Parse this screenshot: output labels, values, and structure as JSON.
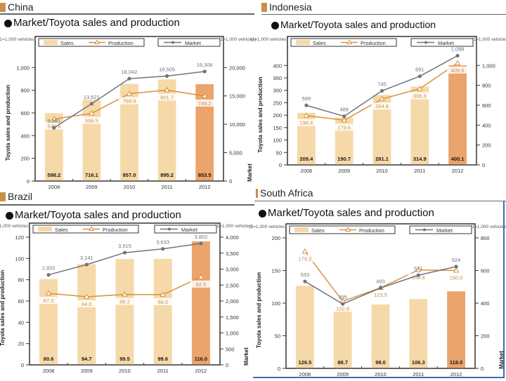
{
  "colors": {
    "sales_light": "#f6d9a8",
    "sales_2012": "#eba46b",
    "production_line": "#d8913c",
    "production_label": "#c98a4a",
    "market_line": "#707480",
    "market_label": "#6d7382",
    "header_square": "#c8904a"
  },
  "chart_data": [
    {
      "id": "china",
      "country": "China",
      "type": "bar",
      "title": "Market/Toyota sales and production",
      "unit_label": "(1=1,000 vehicles)",
      "ylabel": "Toyota sales and production",
      "y2label": "Market",
      "legend": {
        "sales": "Sales",
        "production": "Production",
        "market": "Market"
      },
      "categories": [
        "2008",
        "2009",
        "2010",
        "2011",
        "2012"
      ],
      "ylim": [
        0,
        1150
      ],
      "yticks": [
        0,
        200,
        400,
        600,
        800,
        1000
      ],
      "ytick_labels": [
        "0",
        "200",
        "400",
        "600",
        "800",
        "1,000"
      ],
      "y2lim": [
        0,
        23000
      ],
      "y2ticks": [
        0,
        5000,
        10000,
        15000,
        20000
      ],
      "y2tick_labels": [
        "0",
        "5,000",
        "10,000",
        "15,000",
        "20,000"
      ],
      "series": [
        {
          "name": "Sales",
          "kind": "bar",
          "values": [
            598.2,
            716.1,
            857.0,
            895.2,
            853.5
          ],
          "labels": [
            "598.2",
            "716.1",
            "857.0",
            "895.2",
            "853.5"
          ]
        },
        {
          "name": "Production",
          "kind": "line",
          "values": [
            546.6,
            596.5,
            769.9,
            801.7,
            749.2
          ],
          "labels": [
            "546.6",
            "596.5",
            "769.9",
            "801.7",
            "749.2"
          ]
        },
        {
          "name": "Market",
          "kind": "line",
          "axis": "right",
          "values": [
            9381,
            13621,
            18042,
            18505,
            19306
          ],
          "labels": [
            "9,381",
            "13,621",
            "18,042",
            "18,505",
            "19,306"
          ]
        }
      ]
    },
    {
      "id": "indonesia",
      "country": "Indonesia",
      "type": "bar",
      "title": "Market/Toyota sales and production",
      "unit_label": "(1=1,000 vehicles)",
      "ylabel": "Toyota sales and production",
      "y2label": "",
      "legend": {
        "sales": "Sales",
        "production": "Production",
        "market": "Market"
      },
      "categories": [
        "2008",
        "2009",
        "2010",
        "2011",
        "2012"
      ],
      "ylim": [
        0,
        460
      ],
      "yticks": [
        0,
        50,
        100,
        150,
        200,
        250,
        300,
        350,
        400
      ],
      "ytick_labels": [
        "0",
        "50",
        "100",
        "150",
        "200",
        "250",
        "300",
        "350",
        "400"
      ],
      "y2lim": [
        0,
        1150
      ],
      "y2ticks": [
        0,
        200,
        400,
        600,
        800,
        1000
      ],
      "y2tick_labels": [
        "0",
        "200",
        "400",
        "600",
        "800",
        "1,000"
      ],
      "series": [
        {
          "name": "Sales",
          "kind": "bar",
          "values": [
            209.4,
            190.7,
            281.1,
            314.9,
            400.1
          ],
          "labels": [
            "209.4",
            "190.7",
            "281.1",
            "314.9",
            "400.1"
          ]
        },
        {
          "name": "Production",
          "kind": "line",
          "values": [
            198.4,
            179.6,
            264.8,
            306.3,
            409.6
          ],
          "labels": [
            "198.4",
            "179.6",
            "264.8",
            "306.3",
            "409.6"
          ]
        },
        {
          "name": "Market",
          "kind": "line",
          "axis": "right",
          "values": [
            599,
            489,
            745,
            891,
            1098
          ],
          "labels": [
            "599",
            "489",
            "745",
            "891",
            "1,098"
          ]
        }
      ]
    },
    {
      "id": "brazil",
      "country": "Brazil",
      "type": "bar",
      "title": "Market/Toyota sales and production",
      "unit_label": "(1=1,000 vehicles)",
      "ylabel": "Toyota sales and production",
      "y2label": "Market",
      "legend": {
        "sales": "Sales",
        "production": "Production",
        "market": "Market"
      },
      "categories": [
        "2008",
        "2009",
        "2010",
        "2011",
        "2012"
      ],
      "ylim": [
        0,
        120
      ],
      "yticks": [
        0,
        20,
        40,
        60,
        80,
        100,
        120
      ],
      "ytick_labels": [
        "0",
        "20",
        "40",
        "60",
        "80",
        "100",
        "120"
      ],
      "y2lim": [
        0,
        4000
      ],
      "y2ticks": [
        0,
        500,
        1000,
        1500,
        2000,
        2500,
        3000,
        3500,
        4000
      ],
      "y2tick_labels": [
        "0",
        "500",
        "1,000",
        "1,500",
        "2,000",
        "2,500",
        "3,000",
        "3,500",
        "4,000"
      ],
      "series": [
        {
          "name": "Sales",
          "kind": "bar",
          "values": [
            80.6,
            94.7,
            99.5,
            99.6,
            116.0
          ],
          "labels": [
            "80.6",
            "94.7",
            "99.5",
            "99.6",
            "116.0"
          ]
        },
        {
          "name": "Production",
          "kind": "line",
          "values": [
            67.2,
            64.0,
            66.2,
            66.0,
            82.5
          ],
          "labels": [
            "67.2",
            "64.0",
            "66.2",
            "66.0",
            "82.5"
          ]
        },
        {
          "name": "Market",
          "kind": "line",
          "axis": "right",
          "values": [
            2820,
            3141,
            3515,
            3633,
            3802
          ],
          "labels": [
            "2,820",
            "3,141",
            "3,515",
            "3,633",
            "3,802"
          ]
        }
      ]
    },
    {
      "id": "south-africa",
      "country": "South Africa",
      "type": "bar",
      "title": "Market/Toyota sales and production",
      "unit_label": "(1=1,000 vehicles)",
      "ylabel": "Toyota sales and production",
      "y2label": "Market",
      "legend": {
        "sales": "Sales",
        "production": "Production",
        "market": "Market"
      },
      "categories": [
        "2008",
        "2009",
        "2010",
        "2011",
        "2012"
      ],
      "ylim": [
        0,
        200
      ],
      "yticks": [
        0,
        50,
        100,
        150,
        200
      ],
      "ytick_labels": [
        "0",
        "50",
        "100",
        "150",
        "200"
      ],
      "y2lim": [
        0,
        800
      ],
      "y2ticks": [
        0,
        200,
        400,
        600,
        800
      ],
      "y2tick_labels": [
        "0",
        "200",
        "400",
        "600",
        "800"
      ],
      "series": [
        {
          "name": "Sales",
          "kind": "bar",
          "values": [
            126.5,
            88.7,
            98.0,
            106.3,
            118.0
          ],
          "labels": [
            "126.5",
            "88.7",
            "98.0",
            "106.3",
            "118.0"
          ]
        },
        {
          "name": "Production",
          "kind": "line",
          "values": [
            179.2,
            102.8,
            123.5,
            150.8,
            150.0
          ],
          "labels": [
            "179.2",
            "102.8",
            "123.5",
            "150.8",
            "150.0"
          ]
        },
        {
          "name": "Market",
          "kind": "line",
          "axis": "right",
          "values": [
            533,
            395,
            493,
            571,
            624
          ],
          "labels": [
            "533",
            "395",
            "493",
            "571",
            "624"
          ]
        }
      ]
    }
  ]
}
